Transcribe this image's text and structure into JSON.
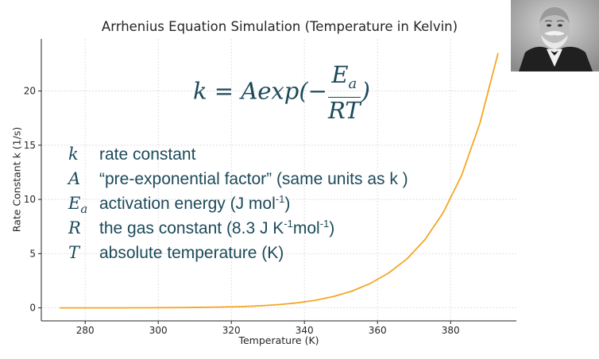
{
  "chart_data": {
    "type": "line",
    "title": "Arrhenius Equation Simulation (Temperature in Kelvin)",
    "xlabel": "Temperature (K)",
    "ylabel": "Rate Constant k (1/s)",
    "xlim": [
      268,
      398
    ],
    "ylim": [
      -1.2,
      24.8
    ],
    "xticks": [
      280,
      300,
      320,
      340,
      360,
      380
    ],
    "yticks": [
      0,
      5,
      10,
      15,
      20
    ],
    "grid": true,
    "series": [
      {
        "color": "#f5a623",
        "x": [
          273,
          278,
          283,
          288,
          293,
          298,
          303,
          308,
          313,
          318,
          323,
          328,
          333,
          338,
          343,
          348,
          353,
          358,
          363,
          368,
          373,
          378,
          383,
          388,
          393
        ],
        "y": [
          0.0,
          0.0,
          0.0,
          0.0,
          0.01,
          0.01,
          0.02,
          0.03,
          0.05,
          0.08,
          0.12,
          0.19,
          0.3,
          0.46,
          0.7,
          1.05,
          1.55,
          2.25,
          3.2,
          4.5,
          6.3,
          8.8,
          12.2,
          17.0,
          23.5
        ]
      }
    ]
  },
  "formula": {
    "lhs": "k",
    "eq": " = ",
    "body": "Aexp(−",
    "num_main": "E",
    "num_sub": "a",
    "den": "RT",
    "close": ")"
  },
  "definitions": [
    {
      "sym": "k",
      "sub": "",
      "text": "rate constant",
      "sup1": "",
      "mid": "",
      "sup2": "",
      "end": ""
    },
    {
      "sym": "A",
      "sub": "",
      "text": "“pre-exponential factor” (same units as k )",
      "sup1": "",
      "mid": "",
      "sup2": "",
      "end": ""
    },
    {
      "sym": "E",
      "sub": "a",
      "text": "activation energy (J mol",
      "sup1": "-1",
      "mid": "",
      "sup2": "",
      "end": ")"
    },
    {
      "sym": "R",
      "sub": "",
      "text": "the gas constant (8.3 J K",
      "sup1": "-1",
      "mid": "mol",
      "sup2": "-1",
      "end": ")"
    },
    {
      "sym": "T",
      "sub": "",
      "text": "absolute temperature (K)",
      "sup1": "",
      "mid": "",
      "sup2": "",
      "end": ""
    }
  ],
  "colors": {
    "line": "#f5a623",
    "text": "#1c4a5a",
    "grid": "#d9d9d9",
    "axis": "#262626"
  },
  "portrait": "portrait-photo"
}
